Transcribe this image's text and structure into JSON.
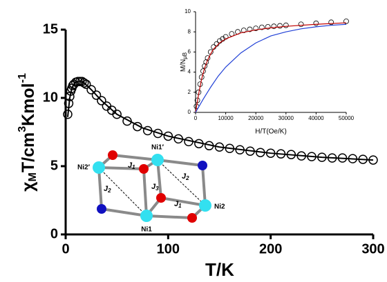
{
  "chart_data": [
    {
      "type": "line",
      "xlabel": "T/K",
      "ylabel": [
        "χ",
        "M",
        "T/cm",
        "3",
        "Kmol",
        "-1"
      ],
      "xlim": [
        0,
        300
      ],
      "xticks": [
        0,
        100,
        200,
        300
      ],
      "ylim": [
        0,
        15
      ],
      "yticks": [
        0,
        5,
        10,
        15
      ],
      "series": [
        {
          "style": "markers",
          "color": "#000000",
          "x": [
            2,
            3,
            4,
            5,
            6,
            7,
            8,
            10,
            12,
            14,
            16,
            18,
            20,
            25,
            30,
            35,
            40,
            45,
            50,
            60,
            70,
            80,
            90,
            100,
            110,
            120,
            130,
            140,
            150,
            160,
            170,
            180,
            190,
            200,
            210,
            220,
            230,
            240,
            250,
            260,
            270,
            280,
            290,
            300
          ],
          "values": [
            8.8,
            9.6,
            10.1,
            10.5,
            10.7,
            10.9,
            11.0,
            11.15,
            11.2,
            11.2,
            11.2,
            11.1,
            11.0,
            10.6,
            10.2,
            9.8,
            9.4,
            9.1,
            8.8,
            8.3,
            7.9,
            7.6,
            7.4,
            7.2,
            7.0,
            6.8,
            6.65,
            6.5,
            6.4,
            6.3,
            6.2,
            6.1,
            6.0,
            5.95,
            5.9,
            5.85,
            5.75,
            5.7,
            5.65,
            5.6,
            5.6,
            5.55,
            5.5,
            5.45
          ]
        },
        {
          "style": "line",
          "color": "#000000",
          "x": [
            2,
            4,
            6,
            8,
            10,
            14,
            18,
            25,
            35,
            50,
            75,
            100,
            150,
            200,
            250,
            300
          ],
          "values": [
            8.6,
            10.0,
            10.7,
            11.0,
            11.15,
            11.2,
            11.1,
            10.6,
            9.8,
            8.8,
            7.8,
            7.2,
            6.4,
            5.95,
            5.65,
            5.45
          ]
        }
      ]
    },
    {
      "type": "line",
      "xlabel": "H/T(Oe/K)",
      "ylabel": [
        "M/N",
        "μB"
      ],
      "xlim": [
        0,
        50000
      ],
      "xticks": [
        0,
        10000,
        20000,
        30000,
        40000,
        50000
      ],
      "ylim": [
        0,
        10
      ],
      "yticks": [
        0,
        2,
        4,
        6,
        8,
        10
      ],
      "series": [
        {
          "style": "markers",
          "color": "#000000",
          "x": [
            300,
            600,
            1000,
            1500,
            2000,
            2500,
            3000,
            3500,
            4000,
            5000,
            6000,
            7000,
            8000,
            9000,
            10000,
            12000,
            14000,
            16000,
            18000,
            20000,
            22000,
            24000,
            26000,
            28000,
            30000,
            35000,
            40000,
            45000,
            50000
          ],
          "values": [
            0.6,
            1.2,
            2.0,
            2.8,
            3.5,
            4.1,
            4.6,
            5.0,
            5.4,
            6.0,
            6.5,
            6.8,
            7.1,
            7.3,
            7.5,
            7.8,
            8.0,
            8.15,
            8.25,
            8.35,
            8.45,
            8.5,
            8.55,
            8.6,
            8.65,
            8.75,
            8.85,
            8.95,
            9.05
          ]
        },
        {
          "style": "line",
          "color": "#c00000",
          "x": [
            0,
            1000,
            2000,
            3000,
            4000,
            5000,
            6000,
            8000,
            10000,
            15000,
            20000,
            25000,
            30000,
            40000,
            50000
          ],
          "values": [
            0,
            1.8,
            3.3,
            4.4,
            5.2,
            5.8,
            6.3,
            6.9,
            7.3,
            7.9,
            8.2,
            8.4,
            8.55,
            8.75,
            8.9
          ]
        },
        {
          "style": "line",
          "color": "#1f3fd6",
          "x": [
            0,
            2500,
            5000,
            7500,
            10000,
            15000,
            20000,
            25000,
            30000,
            35000,
            40000,
            45000,
            50000
          ],
          "values": [
            0,
            1.3,
            2.5,
            3.6,
            4.5,
            5.9,
            6.9,
            7.6,
            8.0,
            8.3,
            8.5,
            8.65,
            8.75
          ]
        }
      ]
    }
  ],
  "annotations": [
    {
      "text": "Ni1′"
    },
    {
      "text": "Ni2′"
    },
    {
      "text": "Ni1"
    },
    {
      "text": "Ni2"
    },
    {
      "text": "J",
      "sub": "1"
    },
    {
      "text": "J",
      "sub": "2"
    },
    {
      "text": "J",
      "sub": "3"
    },
    {
      "text": "J",
      "sub": "2"
    },
    {
      "text": "J",
      "sub": "1"
    }
  ]
}
